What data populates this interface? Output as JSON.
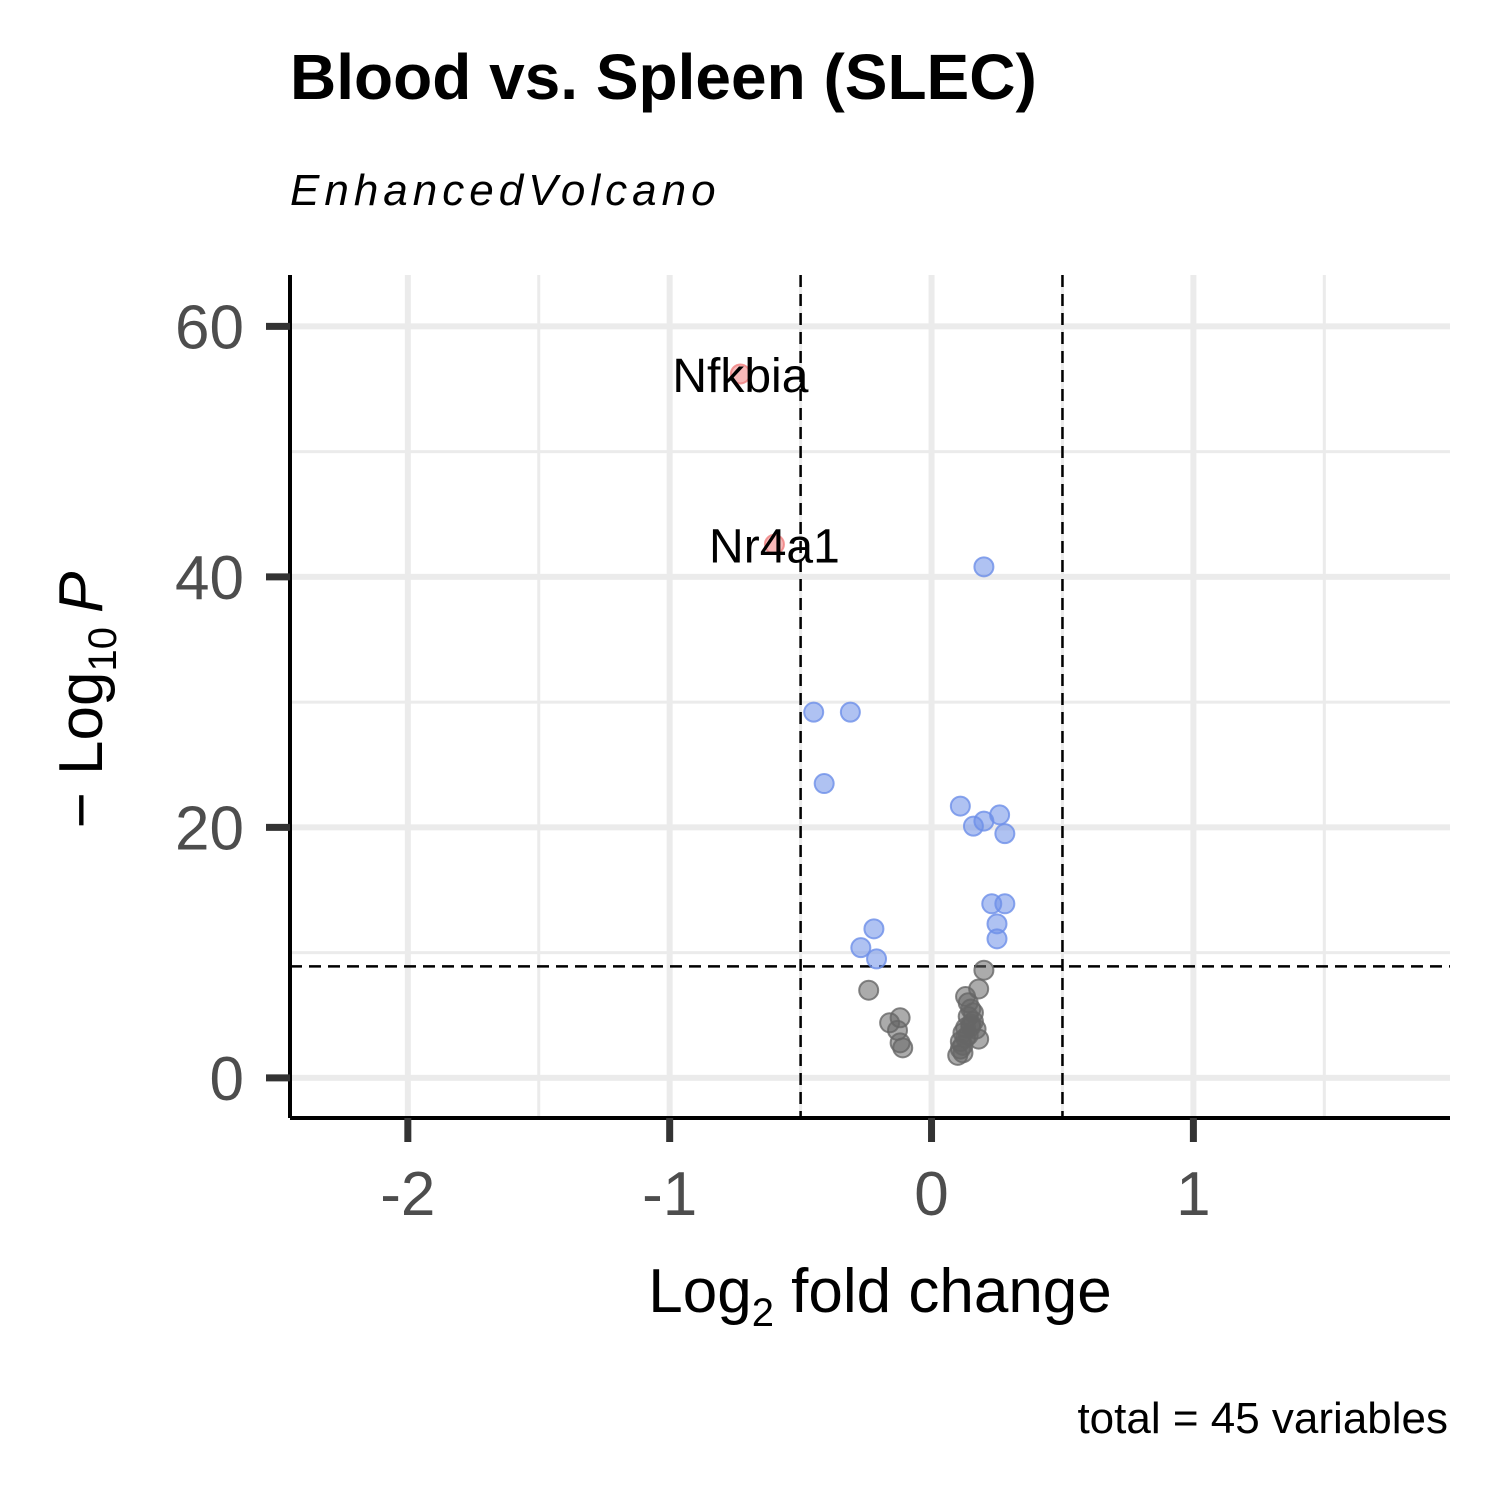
{
  "chart_data": {
    "type": "scatter",
    "title": "Blood vs. Spleen (SLEC)",
    "subtitle": "EnhancedVolcano",
    "caption": "total = 45 variables",
    "xlabel": {
      "base": "Log",
      "sub": "2",
      "rest": " fold change"
    },
    "ylabel": {
      "prefix": "− Log",
      "sub": "10",
      "suffix": "P"
    },
    "xlim": [
      -2.45,
      1.98
    ],
    "ylim": [
      -3.2,
      64.1
    ],
    "x_ticks": [
      -2,
      -1,
      0,
      1
    ],
    "x_tick_labels": [
      "-2",
      "-1",
      "0",
      "1"
    ],
    "y_ticks": [
      0,
      20,
      40,
      60
    ],
    "y_tick_labels": [
      "0",
      "20",
      "40",
      "60"
    ],
    "fc_cutoff": 0.5,
    "p_cutoff_log10": 8.9,
    "grid": true,
    "colors": {
      "significant_both": "#f08080",
      "p_only": "#6d8fe8",
      "not_significant": "#666666"
    },
    "series": [
      {
        "group": "significant_both",
        "points": [
          {
            "x": -0.73,
            "y": 56.2,
            "label": "Nfkbia"
          },
          {
            "x": -0.6,
            "y": 42.6,
            "label": "Nr4a1"
          }
        ]
      },
      {
        "group": "p_only",
        "points": [
          {
            "x": 0.2,
            "y": 40.8
          },
          {
            "x": -0.45,
            "y": 29.2
          },
          {
            "x": -0.31,
            "y": 29.2
          },
          {
            "x": -0.41,
            "y": 23.5
          },
          {
            "x": 0.11,
            "y": 21.7
          },
          {
            "x": 0.16,
            "y": 20.1
          },
          {
            "x": 0.2,
            "y": 20.5
          },
          {
            "x": 0.26,
            "y": 21.0
          },
          {
            "x": 0.28,
            "y": 19.5
          },
          {
            "x": 0.23,
            "y": 13.9
          },
          {
            "x": 0.28,
            "y": 13.9
          },
          {
            "x": 0.25,
            "y": 12.3
          },
          {
            "x": 0.25,
            "y": 11.1
          },
          {
            "x": -0.22,
            "y": 11.9
          },
          {
            "x": -0.27,
            "y": 10.4
          },
          {
            "x": -0.21,
            "y": 9.5
          }
        ]
      },
      {
        "group": "not_significant",
        "points": [
          {
            "x": 0.2,
            "y": 8.6
          },
          {
            "x": 0.18,
            "y": 7.1
          },
          {
            "x": -0.24,
            "y": 7.0
          },
          {
            "x": 0.13,
            "y": 6.5
          },
          {
            "x": 0.14,
            "y": 6.0
          },
          {
            "x": 0.15,
            "y": 5.5
          },
          {
            "x": 0.14,
            "y": 4.9
          },
          {
            "x": 0.16,
            "y": 4.5
          },
          {
            "x": 0.15,
            "y": 4.1
          },
          {
            "x": 0.17,
            "y": 3.9
          },
          {
            "x": 0.12,
            "y": 3.6
          },
          {
            "x": 0.13,
            "y": 3.2
          },
          {
            "x": 0.18,
            "y": 3.1
          },
          {
            "x": 0.11,
            "y": 2.9
          },
          {
            "x": 0.12,
            "y": 2.6
          },
          {
            "x": 0.11,
            "y": 2.3
          },
          {
            "x": 0.1,
            "y": 1.8
          },
          {
            "x": -0.12,
            "y": 4.8
          },
          {
            "x": -0.16,
            "y": 4.4
          },
          {
            "x": -0.13,
            "y": 3.8
          },
          {
            "x": -0.12,
            "y": 2.8
          },
          {
            "x": -0.11,
            "y": 2.4
          },
          {
            "x": 0.14,
            "y": 3.4
          },
          {
            "x": 0.16,
            "y": 5.2
          },
          {
            "x": 0.15,
            "y": 4.3
          },
          {
            "x": 0.13,
            "y": 4.0
          },
          {
            "x": 0.12,
            "y": 2.0
          }
        ]
      }
    ]
  }
}
